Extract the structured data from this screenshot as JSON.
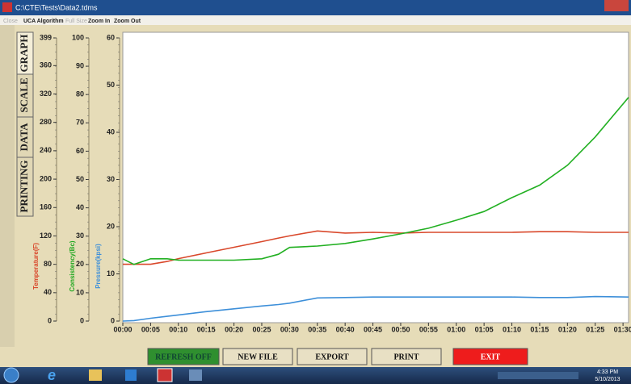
{
  "window": {
    "title": "C:\\CTE\\Tests\\Data2.tdms"
  },
  "menu": [
    "Close",
    "UCA Algorithm",
    "Full Size",
    "Zoom In",
    "Zoom Out"
  ],
  "tabs": [
    "GRAPH",
    "SCALE",
    "DATA",
    "PRINTING"
  ],
  "chart_data": {
    "type": "line",
    "x": [
      0,
      2,
      5,
      8,
      10,
      15,
      20,
      25,
      28,
      30,
      35,
      40,
      45,
      50,
      55,
      60,
      65,
      70,
      75,
      80,
      85,
      91
    ],
    "xlim": [
      0,
      91
    ],
    "xticks": [
      {
        "value": 0,
        "label": "00:00"
      },
      {
        "value": 5,
        "label": "00:05"
      },
      {
        "value": 10,
        "label": "00:10"
      },
      {
        "value": 15,
        "label": "00:15"
      },
      {
        "value": 20,
        "label": "00:20"
      },
      {
        "value": 25,
        "label": "00:25"
      },
      {
        "value": 30,
        "label": "00:30"
      },
      {
        "value": 35,
        "label": "00:35"
      },
      {
        "value": 40,
        "label": "00:40"
      },
      {
        "value": 45,
        "label": "00:45"
      },
      {
        "value": 50,
        "label": "00:50"
      },
      {
        "value": 55,
        "label": "00:55"
      },
      {
        "value": 60,
        "label": "01:00"
      },
      {
        "value": 65,
        "label": "01:05"
      },
      {
        "value": 70,
        "label": "01:10"
      },
      {
        "value": 75,
        "label": "01:15"
      },
      {
        "value": 80,
        "label": "01:20"
      },
      {
        "value": 85,
        "label": "01:25"
      },
      {
        "value": 90,
        "label": "01:30"
      }
    ],
    "ylabel": "Temperature(F)",
    "ylim": [
      0,
      399
    ],
    "yticks": [
      0,
      40,
      80,
      120,
      160,
      200,
      240,
      280,
      320,
      360,
      399
    ],
    "ycolor": "#d9482b",
    "y2label": "Consistency(Bc)",
    "y2lim": [
      0,
      100
    ],
    "y2ticks": [
      0,
      10,
      20,
      30,
      40,
      50,
      60,
      70,
      80,
      90,
      100
    ],
    "y2color": "#22a822",
    "y3label": "Pressure(kpsi)",
    "y3lim": [
      0,
      60
    ],
    "y3ticks": [
      0,
      10,
      20,
      30,
      40,
      50,
      60
    ],
    "y3color": "#3d8fd9",
    "series": [
      {
        "name": "Temperature(F)",
        "axis": "y",
        "color": "#d9482b",
        "values": [
          80,
          80,
          80,
          84,
          88,
          96,
          104,
          112,
          117,
          120,
          127,
          124,
          125,
          124,
          125,
          125,
          125,
          125,
          126,
          126,
          125,
          125
        ]
      },
      {
        "name": "Consistency(Bc)",
        "axis": "y2",
        "color": "#22b022",
        "values": [
          22,
          20,
          22,
          22,
          21.5,
          21.5,
          21.5,
          22,
          23.6,
          26,
          26.5,
          27.4,
          29,
          30.8,
          32.8,
          35.6,
          38.7,
          43.6,
          48,
          55,
          65,
          79
        ]
      },
      {
        "name": "Pressure(kpsi)",
        "axis": "y3",
        "color": "#3d8fd9",
        "values": [
          0,
          0.1,
          0.6,
          1,
          1.3,
          2,
          2.6,
          3.2,
          3.5,
          3.8,
          4.9,
          5.0,
          5.1,
          5.1,
          5.1,
          5.1,
          5.1,
          5.1,
          5.0,
          5.0,
          5.2,
          5.1
        ]
      }
    ]
  },
  "buttons": [
    "REFRESH OFF",
    "NEW FILE",
    "EXPORT",
    "PRINT",
    "EXIT"
  ],
  "taskbar": {
    "time": "4:33 PM",
    "date": "5/10/2013"
  }
}
